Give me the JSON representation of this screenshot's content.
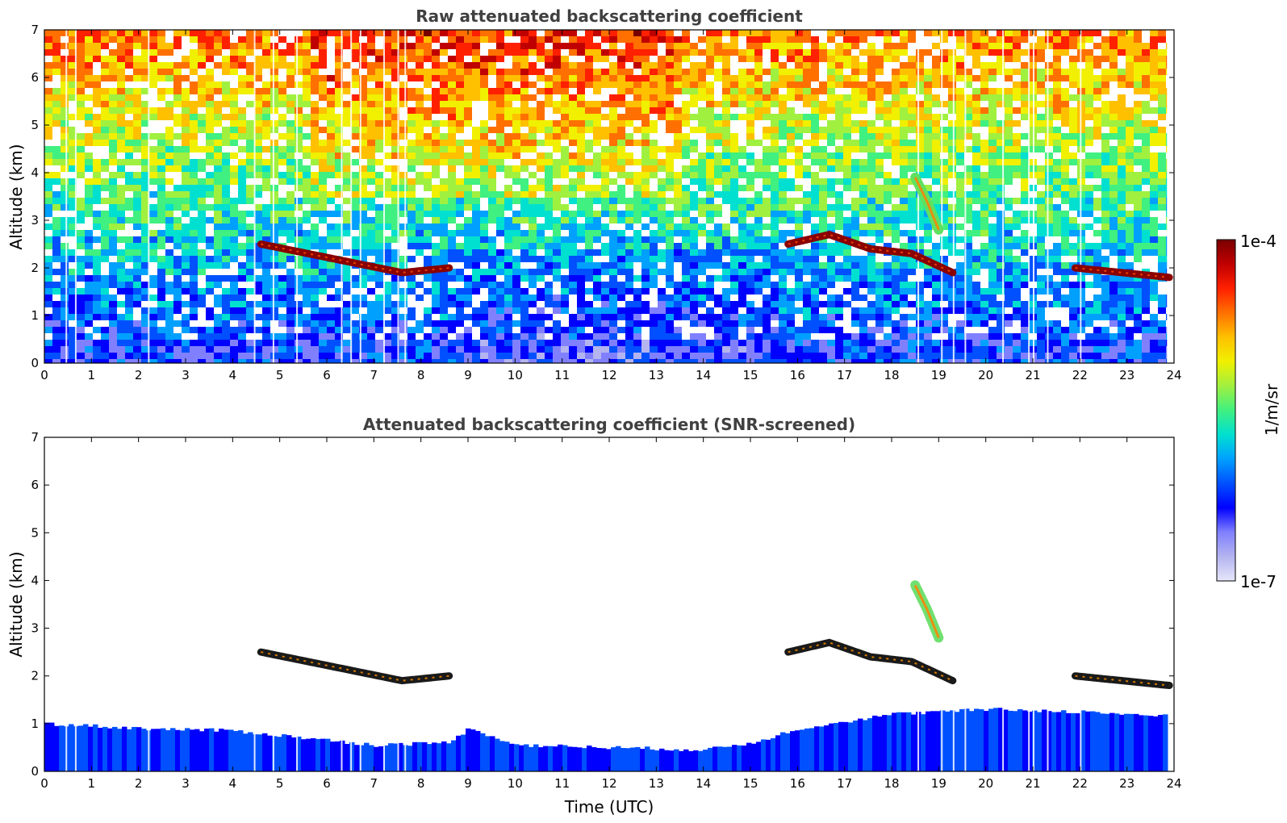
{
  "chart_data": [
    {
      "type": "heatmap",
      "title": "Raw attenuated backscattering coefficient",
      "xlabel": "",
      "ylabel": "Altitude (km)",
      "xlim": [
        0,
        24
      ],
      "ylim": [
        0,
        7
      ],
      "xticks": [
        "0",
        "1",
        "2",
        "3",
        "4",
        "5",
        "6",
        "7",
        "8",
        "9",
        "10",
        "11",
        "12",
        "13",
        "14",
        "15",
        "16",
        "17",
        "18",
        "19",
        "20",
        "21",
        "22",
        "23",
        "24"
      ],
      "yticks": [
        "0",
        "1",
        "2",
        "3",
        "4",
        "5",
        "6",
        "7"
      ],
      "features": [
        {
          "kind": "cloud-layer",
          "from_time": 4.6,
          "to_time": 8.6,
          "altitude_km": [
            2.5,
            2.3,
            2.1,
            1.9,
            2.0
          ],
          "level": "1e-4"
        },
        {
          "kind": "cloud-layer",
          "from_time": 15.8,
          "to_time": 19.3,
          "altitude_km": [
            2.5,
            2.7,
            2.4,
            2.3,
            1.9
          ],
          "level": "1e-4"
        },
        {
          "kind": "cloud-layer",
          "from_time": 18.5,
          "to_time": 19.0,
          "altitude_km": [
            3.9,
            3.4,
            2.8
          ],
          "level": "1e-5"
        },
        {
          "kind": "cloud-layer",
          "from_time": 21.9,
          "to_time": 23.9,
          "altitude_km": [
            2.0,
            1.9,
            1.8
          ],
          "level": "1e-4"
        },
        {
          "kind": "boundary-layer",
          "top_km": 1.0,
          "level": "1e-6"
        }
      ]
    },
    {
      "type": "heatmap",
      "title": "Attenuated backscattering coefficient (SNR-screened)",
      "xlabel": "Time (UTC)",
      "ylabel": "Altitude (km)",
      "xlim": [
        0,
        24
      ],
      "ylim": [
        0,
        7
      ],
      "xticks": [
        "0",
        "1",
        "2",
        "3",
        "4",
        "5",
        "6",
        "7",
        "8",
        "9",
        "10",
        "11",
        "12",
        "13",
        "14",
        "15",
        "16",
        "17",
        "18",
        "19",
        "20",
        "21",
        "22",
        "23",
        "24"
      ],
      "yticks": [
        "0",
        "1",
        "2",
        "3",
        "4",
        "5",
        "6",
        "7"
      ],
      "boundary_layer_top": {
        "time": [
          0,
          2,
          4,
          5,
          7,
          8.5,
          9,
          10,
          12,
          14,
          15,
          16,
          18,
          20,
          22,
          23.9
        ],
        "altitude_km": [
          1.0,
          0.9,
          0.85,
          0.75,
          0.55,
          0.6,
          0.9,
          0.55,
          0.5,
          0.45,
          0.6,
          0.9,
          1.2,
          1.3,
          1.25,
          1.15
        ]
      }
    }
  ],
  "colorbar": {
    "label": "1/m/sr",
    "max_label": "1e-4",
    "min_label": "1e-7",
    "colors": [
      "#e6e6fa",
      "#b4b4f0",
      "#8080ff",
      "#0000ff",
      "#0050ff",
      "#00a0ff",
      "#00e0d0",
      "#40f080",
      "#a0f040",
      "#f0f000",
      "#ffc000",
      "#ff7000",
      "#ff2000",
      "#c00000",
      "#7a0000"
    ]
  }
}
